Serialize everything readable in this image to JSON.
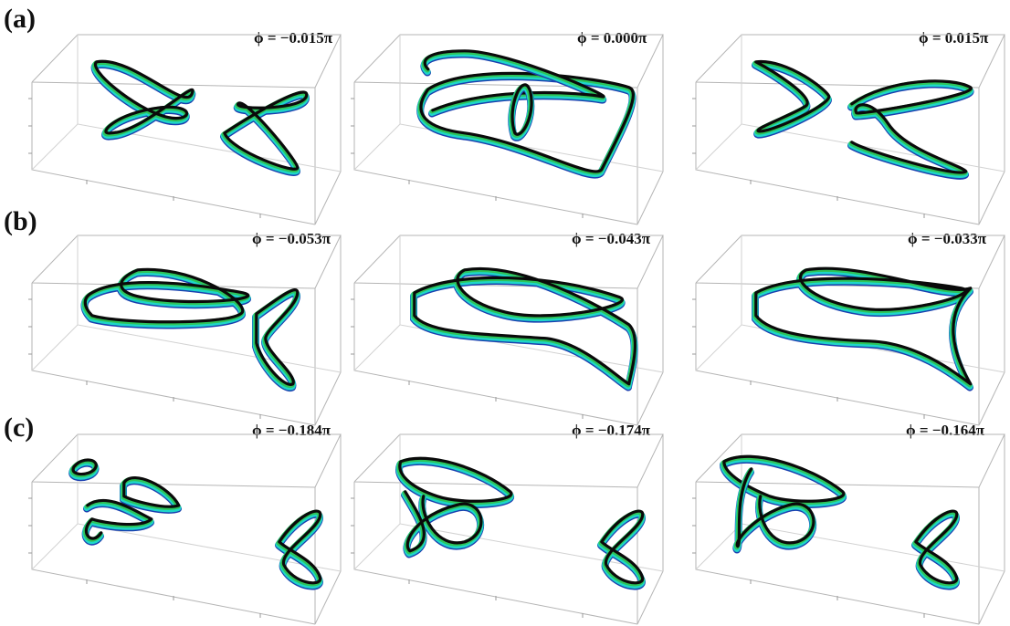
{
  "rows": [
    {
      "label": "(a)",
      "phis": [
        "ϕ = −0.015π",
        "ϕ = 0.000π",
        "ϕ = 0.015π"
      ]
    },
    {
      "label": "(b)",
      "phis": [
        "ϕ = −0.053π",
        "ϕ = −0.043π",
        "ϕ = −0.033π"
      ]
    },
    {
      "label": "(c)",
      "phis": [
        "ϕ = −0.184π",
        "ϕ = −0.174π",
        "ϕ = −0.164π"
      ]
    }
  ],
  "colors": {
    "tube_core": "#0a0a0a",
    "tube_cyan": "#1ed6c8",
    "tube_green": "#2ec45a",
    "tube_blue": "#1a3fb0",
    "box": "#b5b5b5"
  }
}
